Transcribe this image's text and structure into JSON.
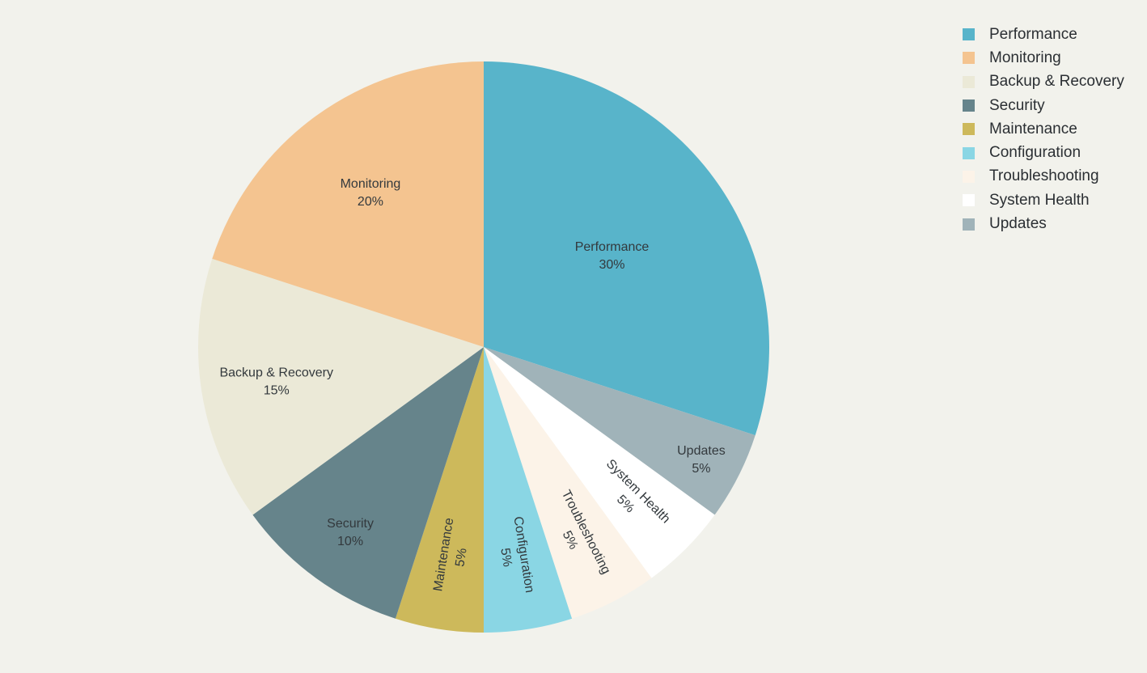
{
  "chart_data": {
    "type": "pie",
    "title": "",
    "slices": [
      {
        "label": "Performance",
        "value": 30,
        "text": "30%",
        "color": "#58b4ca"
      },
      {
        "label": "Updates",
        "value": 5,
        "text": "5%",
        "color": "#a0b3b9"
      },
      {
        "label": "System Health",
        "value": 5,
        "text": "5%",
        "color": "#ffffff"
      },
      {
        "label": "Troubleshooting",
        "value": 5,
        "text": "5%",
        "color": "#fcf3e8"
      },
      {
        "label": "Configuration",
        "value": 5,
        "text": "5%",
        "color": "#8ad6e4"
      },
      {
        "label": "Maintenance",
        "value": 5,
        "text": "5%",
        "color": "#cdb95b"
      },
      {
        "label": "Security",
        "value": 10,
        "text": "10%",
        "color": "#66848b"
      },
      {
        "label": "Backup & Recovery",
        "value": 15,
        "text": "15%",
        "color": "#ebe9d7"
      },
      {
        "label": "Monitoring",
        "value": 20,
        "text": "20%",
        "color": "#f4c490"
      }
    ],
    "direction": "clockwise",
    "start": "12 o'clock",
    "legend_position": "top-right",
    "legend": [
      {
        "label": "Performance",
        "color": "#58b4ca"
      },
      {
        "label": "Monitoring",
        "color": "#f4c490"
      },
      {
        "label": "Backup & Recovery",
        "color": "#ebe9d7"
      },
      {
        "label": "Security",
        "color": "#66848b"
      },
      {
        "label": "Maintenance",
        "color": "#cdb95b"
      },
      {
        "label": "Configuration",
        "color": "#8ad6e4"
      },
      {
        "label": "Troubleshooting",
        "color": "#fcf3e8"
      },
      {
        "label": "System Health",
        "color": "#ffffff"
      },
      {
        "label": "Updates",
        "color": "#a0b3b9"
      }
    ]
  }
}
